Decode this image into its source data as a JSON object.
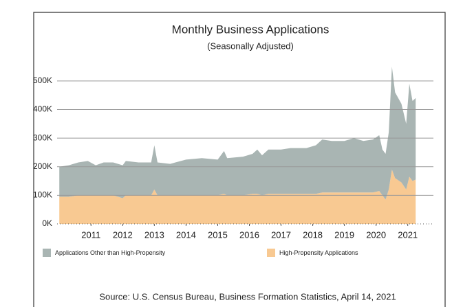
{
  "chart_data": {
    "type": "stacked_area",
    "title": "Monthly Business Applications",
    "subtitle": "(Seasonally Adjusted)",
    "source": "Source: U.S. Census Bureau, Business Formation Statistics, April 14, 2021",
    "x": [
      2010.0,
      2010.3,
      2010.6,
      2010.9,
      2011.15,
      2011.4,
      2011.7,
      2012.0,
      2012.1,
      2012.5,
      2012.9,
      2013.0,
      2013.1,
      2013.5,
      2014.0,
      2014.5,
      2015.0,
      2015.2,
      2015.3,
      2015.8,
      2016.1,
      2016.25,
      2016.4,
      2016.6,
      2017.0,
      2017.3,
      2017.8,
      2018.1,
      2018.3,
      2018.6,
      2019.0,
      2019.3,
      2019.6,
      2019.9,
      2020.1,
      2020.2,
      2020.3,
      2020.4,
      2020.5,
      2020.6,
      2020.8,
      2020.95,
      2021.05,
      2021.15,
      2021.25
    ],
    "series": [
      {
        "name": "Applications Other than High-Propensity",
        "color": "#a9b5b3",
        "values": [
          105,
          110,
          115,
          120,
          105,
          115,
          115,
          115,
          120,
          115,
          115,
          155,
          115,
          110,
          125,
          130,
          125,
          150,
          130,
          135,
          140,
          155,
          140,
          155,
          155,
          160,
          160,
          170,
          185,
          180,
          180,
          190,
          180,
          185,
          195,
          160,
          160,
          200,
          360,
          300,
          275,
          230,
          325,
          280,
          285
        ]
      },
      {
        "name": "High-Propensity Applications",
        "color": "#f8c992",
        "values": [
          95,
          95,
          100,
          100,
          100,
          100,
          100,
          90,
          100,
          100,
          100,
          120,
          100,
          100,
          100,
          100,
          100,
          105,
          100,
          100,
          105,
          105,
          100,
          105,
          105,
          105,
          105,
          105,
          110,
          110,
          110,
          110,
          110,
          110,
          115,
          100,
          85,
          120,
          190,
          160,
          145,
          120,
          165,
          150,
          155
        ]
      }
    ],
    "xlim": [
      2009.93,
      2021.81
    ],
    "xticks": [
      2011,
      2012,
      2013,
      2014,
      2015,
      2016,
      2017,
      2018,
      2019,
      2020,
      2021
    ],
    "ylim": [
      0,
      550
    ],
    "yticks": [
      {
        "value": 0,
        "label": "0K"
      },
      {
        "value": 100,
        "label": "100K"
      },
      {
        "value": 200,
        "label": "200K"
      },
      {
        "value": 300,
        "label": "300K"
      },
      {
        "value": 400,
        "label": "400K"
      },
      {
        "value": 500,
        "label": "500K"
      }
    ],
    "grid": true,
    "legend": "bottom"
  }
}
